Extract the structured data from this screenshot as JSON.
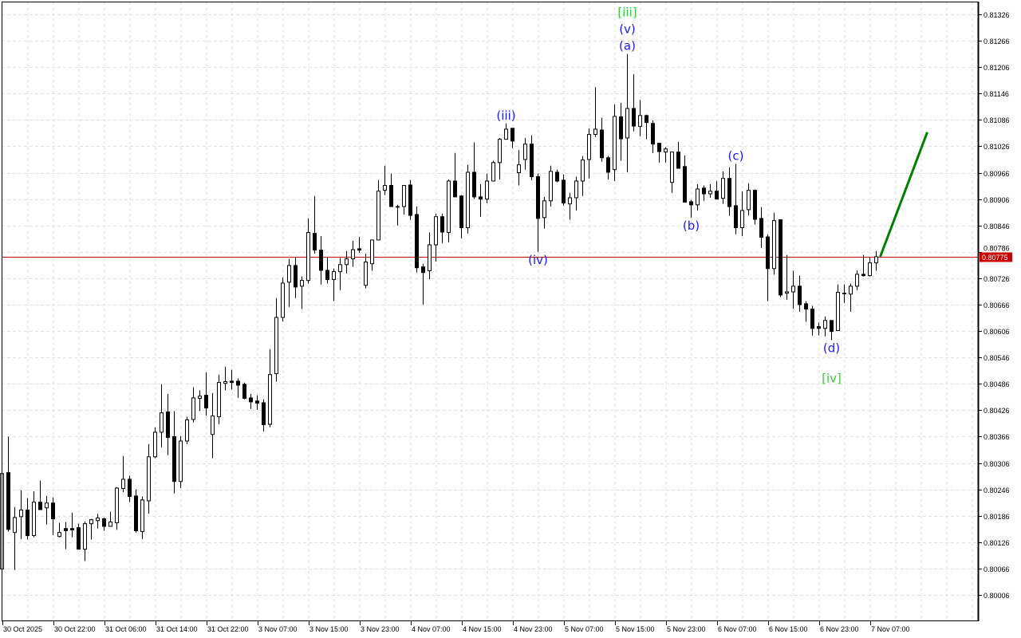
{
  "chart_data": {
    "type": "candlestick",
    "title": "",
    "xlabel": "",
    "ylabel": "",
    "ylim": [
      0.79948,
      0.81355
    ],
    "grid": true,
    "colors": {
      "bull_fill": "#ffffff",
      "bear_fill": "#000000",
      "candle_outline": "#000000",
      "grid": "#e0e0e0",
      "price_line": "#d00000",
      "projection": "#008000",
      "wave_minor": "#1a1aff",
      "wave_major": "#3cc83c"
    },
    "y_ticks": [
      "0.81326",
      "0.81266",
      "0.81206",
      "0.81146",
      "0.81086",
      "0.81026",
      "0.80966",
      "0.80906",
      "0.80846",
      "0.80786",
      "0.80726",
      "0.80666",
      "0.80606",
      "0.80546",
      "0.80486",
      "0.80426",
      "0.80366",
      "0.80306",
      "0.80246",
      "0.80186",
      "0.80126",
      "0.80066",
      "0.80006"
    ],
    "x_ticks": [
      {
        "bar": 0,
        "label": "30 Oct 2025"
      },
      {
        "bar": 8,
        "label": "30 Oct 22:00"
      },
      {
        "bar": 16,
        "label": "31 Oct 06:00"
      },
      {
        "bar": 24,
        "label": "31 Oct 14:00"
      },
      {
        "bar": 32,
        "label": "31 Oct 22:00"
      },
      {
        "bar": 40,
        "label": "3 Nov 07:00"
      },
      {
        "bar": 48,
        "label": "3 Nov 15:00"
      },
      {
        "bar": 56,
        "label": "3 Nov 23:00"
      },
      {
        "bar": 64,
        "label": "4 Nov 07:00"
      },
      {
        "bar": 72,
        "label": "4 Nov 15:00"
      },
      {
        "bar": 80,
        "label": "4 Nov 23:00"
      },
      {
        "bar": 88,
        "label": "5 Nov 07:00"
      },
      {
        "bar": 96,
        "label": "5 Nov 15:00"
      },
      {
        "bar": 104,
        "label": "5 Nov 23:00"
      },
      {
        "bar": 112,
        "label": "6 Nov 07:00"
      },
      {
        "bar": 120,
        "label": "6 Nov 15:00"
      },
      {
        "bar": 128,
        "label": "6 Nov 23:00"
      },
      {
        "bar": 136,
        "label": "7 Nov 07:00"
      }
    ],
    "current_price": "0.80775",
    "ohlc": [
      [
        0.80065,
        0.80366,
        0.80065,
        0.80282
      ],
      [
        0.80284,
        0.80366,
        0.8015,
        0.80155
      ],
      [
        0.80148,
        0.80206,
        0.80063,
        0.80182
      ],
      [
        0.80184,
        0.80244,
        0.80133,
        0.80199
      ],
      [
        0.80199,
        0.80226,
        0.80132,
        0.80141
      ],
      [
        0.80141,
        0.80242,
        0.80137,
        0.80217
      ],
      [
        0.80217,
        0.80266,
        0.802,
        0.802
      ],
      [
        0.80204,
        0.80231,
        0.80166,
        0.80215
      ],
      [
        0.80215,
        0.80228,
        0.80142,
        0.80179
      ],
      [
        0.80139,
        0.8017,
        0.80137,
        0.80148
      ],
      [
        0.80157,
        0.80172,
        0.8011,
        0.80152
      ],
      [
        0.80157,
        0.80193,
        0.80137,
        0.80154
      ],
      [
        0.80159,
        0.80168,
        0.8011,
        0.8011
      ],
      [
        0.8011,
        0.80173,
        0.80083,
        0.80168
      ],
      [
        0.80168,
        0.80179,
        0.80132,
        0.80177
      ],
      [
        0.80175,
        0.8019,
        0.80157,
        0.80181
      ],
      [
        0.80179,
        0.80182,
        0.80152,
        0.80162
      ],
      [
        0.80162,
        0.80195,
        0.80161,
        0.80172
      ],
      [
        0.8017,
        0.80251,
        0.80154,
        0.80249
      ],
      [
        0.80248,
        0.80322,
        0.8024,
        0.80269
      ],
      [
        0.80269,
        0.80277,
        0.80217,
        0.8023
      ],
      [
        0.80231,
        0.80246,
        0.80148,
        0.80152
      ],
      [
        0.8015,
        0.8023,
        0.80133,
        0.80222
      ],
      [
        0.8022,
        0.80349,
        0.80191,
        0.8032
      ],
      [
        0.8032,
        0.80387,
        0.80317,
        0.80376
      ],
      [
        0.80376,
        0.80485,
        0.80342,
        0.8042
      ],
      [
        0.80422,
        0.80463,
        0.80324,
        0.80364
      ],
      [
        0.80366,
        0.80424,
        0.80237,
        0.80264
      ],
      [
        0.80264,
        0.80367,
        0.80249,
        0.80356
      ],
      [
        0.80356,
        0.80411,
        0.80349,
        0.80404
      ],
      [
        0.80405,
        0.80478,
        0.80398,
        0.80454
      ],
      [
        0.80453,
        0.80471,
        0.80424,
        0.80458
      ],
      [
        0.8046,
        0.80512,
        0.80414,
        0.80431
      ],
      [
        0.80371,
        0.80465,
        0.80317,
        0.80413
      ],
      [
        0.80411,
        0.80507,
        0.80394,
        0.80489
      ],
      [
        0.80487,
        0.80525,
        0.80471,
        0.80491
      ],
      [
        0.80492,
        0.80518,
        0.80473,
        0.80489
      ],
      [
        0.80492,
        0.80498,
        0.80454,
        0.80483
      ],
      [
        0.80485,
        0.80489,
        0.80451,
        0.80453
      ],
      [
        0.80454,
        0.80463,
        0.80429,
        0.80445
      ],
      [
        0.80447,
        0.8046,
        0.80427,
        0.80442
      ],
      [
        0.80443,
        0.80451,
        0.80378,
        0.80393
      ],
      [
        0.80394,
        0.80565,
        0.80387,
        0.80507
      ],
      [
        0.80509,
        0.80681,
        0.80491,
        0.80637
      ],
      [
        0.80637,
        0.80728,
        0.80628,
        0.80715
      ],
      [
        0.80717,
        0.8077,
        0.80661,
        0.80755
      ],
      [
        0.80755,
        0.80775,
        0.80681,
        0.80706
      ],
      [
        0.80708,
        0.8073,
        0.80656,
        0.80721
      ],
      [
        0.80721,
        0.80862,
        0.80714,
        0.8083
      ],
      [
        0.80828,
        0.80913,
        0.80782,
        0.8079
      ],
      [
        0.8079,
        0.80822,
        0.80712,
        0.80744
      ],
      [
        0.80744,
        0.80775,
        0.80714,
        0.80723
      ],
      [
        0.80723,
        0.80748,
        0.80674,
        0.80741
      ],
      [
        0.80741,
        0.80772,
        0.80699,
        0.80757
      ],
      [
        0.80757,
        0.80788,
        0.80737,
        0.8077
      ],
      [
        0.8077,
        0.80811,
        0.80752,
        0.80791
      ],
      [
        0.80793,
        0.8082,
        0.80784,
        0.8079
      ],
      [
        0.8071,
        0.80782,
        0.80703,
        0.80763
      ],
      [
        0.80759,
        0.80813,
        0.80743,
        0.80813
      ],
      [
        0.80813,
        0.80949,
        0.80813,
        0.80924
      ],
      [
        0.80926,
        0.80982,
        0.80915,
        0.80937
      ],
      [
        0.80937,
        0.80964,
        0.80889,
        0.80889
      ],
      [
        0.80889,
        0.80893,
        0.80846,
        0.80889
      ],
      [
        0.80889,
        0.80938,
        0.80871,
        0.80937
      ],
      [
        0.80938,
        0.80949,
        0.80859,
        0.80869
      ],
      [
        0.80871,
        0.80889,
        0.80739,
        0.8075
      ],
      [
        0.80752,
        0.80759,
        0.80666,
        0.80739
      ],
      [
        0.80743,
        0.8083,
        0.80724,
        0.80802
      ],
      [
        0.80802,
        0.80873,
        0.80764,
        0.80866
      ],
      [
        0.80866,
        0.80873,
        0.80806,
        0.80831
      ],
      [
        0.8083,
        0.80951,
        0.80808,
        0.80947
      ],
      [
        0.80947,
        0.81011,
        0.80911,
        0.80911
      ],
      [
        0.80913,
        0.80915,
        0.80817,
        0.80841
      ],
      [
        0.80841,
        0.80984,
        0.80828,
        0.80967
      ],
      [
        0.80967,
        0.81035,
        0.80906,
        0.80911
      ],
      [
        0.80911,
        0.8094,
        0.80866,
        0.80906
      ],
      [
        0.80906,
        0.80964,
        0.80897,
        0.80947
      ],
      [
        0.80947,
        0.80993,
        0.80946,
        0.80989
      ],
      [
        0.80989,
        0.81045,
        0.80951,
        0.81042
      ],
      [
        0.81042,
        0.81078,
        0.81042,
        0.81065
      ],
      [
        0.81067,
        0.81067,
        0.81022,
        0.81038
      ],
      [
        0.80966,
        0.81018,
        0.80937,
        0.80984
      ],
      [
        0.80996,
        0.81045,
        0.80973,
        0.81031
      ],
      [
        0.81031,
        0.81051,
        0.80949,
        0.80957
      ],
      [
        0.80957,
        0.80964,
        0.80786,
        0.80862
      ],
      [
        0.80864,
        0.80911,
        0.80839,
        0.80902
      ],
      [
        0.80902,
        0.80982,
        0.80889,
        0.80969
      ],
      [
        0.80967,
        0.80973,
        0.80944,
        0.80947
      ],
      [
        0.80949,
        0.80962,
        0.80891,
        0.80897
      ],
      [
        0.80895,
        0.8092,
        0.80859,
        0.80909
      ],
      [
        0.80909,
        0.80957,
        0.8088,
        0.80947
      ],
      [
        0.80947,
        0.81004,
        0.80913,
        0.80995
      ],
      [
        0.80996,
        0.81067,
        0.80953,
        0.81053
      ],
      [
        0.81053,
        0.8116,
        0.81047,
        0.81065
      ],
      [
        0.81063,
        0.81091,
        0.80991,
        0.81
      ],
      [
        0.81,
        0.81004,
        0.80951,
        0.80967
      ],
      [
        0.80973,
        0.81121,
        0.80947,
        0.81094
      ],
      [
        0.81093,
        0.81125,
        0.80993,
        0.81043
      ],
      [
        0.81045,
        0.81236,
        0.80967,
        0.81112
      ],
      [
        0.81112,
        0.8119,
        0.8106,
        0.81072
      ],
      [
        0.81071,
        0.81131,
        0.81049,
        0.81096
      ],
      [
        0.81096,
        0.81098,
        0.81042,
        0.8108
      ],
      [
        0.81078,
        0.81085,
        0.81011,
        0.81031
      ],
      [
        0.81033,
        0.81033,
        0.80989,
        0.81014
      ],
      [
        0.81013,
        0.81024,
        0.80989,
        0.8102
      ],
      [
        0.80944,
        0.81013,
        0.8092,
        0.81013
      ],
      [
        0.81013,
        0.81036,
        0.80976,
        0.80976
      ],
      [
        0.8098,
        0.81005,
        0.80899,
        0.80899
      ],
      [
        0.809,
        0.80904,
        0.80864,
        0.80893
      ],
      [
        0.80893,
        0.8094,
        0.8088,
        0.80929
      ],
      [
        0.80931,
        0.80937,
        0.80902,
        0.80918
      ],
      [
        0.80918,
        0.8094,
        0.80909,
        0.80924
      ],
      [
        0.80924,
        0.80947,
        0.80906,
        0.80906
      ],
      [
        0.80908,
        0.80969,
        0.80895,
        0.80953
      ],
      [
        0.80953,
        0.80978,
        0.80868,
        0.80889
      ],
      [
        0.80891,
        0.80986,
        0.80826,
        0.80841
      ],
      [
        0.80841,
        0.80924,
        0.80822,
        0.8088
      ],
      [
        0.80882,
        0.80942,
        0.80869,
        0.80926
      ],
      [
        0.80926,
        0.80928,
        0.80848,
        0.8086
      ],
      [
        0.80862,
        0.80888,
        0.80795,
        0.80819
      ],
      [
        0.8082,
        0.80826,
        0.80674,
        0.80748
      ],
      [
        0.80748,
        0.80875,
        0.80734,
        0.80857
      ],
      [
        0.80859,
        0.80859,
        0.80683,
        0.80688
      ],
      [
        0.80692,
        0.80779,
        0.80677,
        0.80695
      ],
      [
        0.80695,
        0.80743,
        0.80657,
        0.80708
      ],
      [
        0.80708,
        0.80732,
        0.8065,
        0.80666
      ],
      [
        0.80668,
        0.80674,
        0.80627,
        0.80656
      ],
      [
        0.80656,
        0.80663,
        0.80596,
        0.80612
      ],
      [
        0.80616,
        0.80625,
        0.80596,
        0.80612
      ],
      [
        0.80612,
        0.80639,
        0.80594,
        0.8063
      ],
      [
        0.8063,
        0.8063,
        0.80585,
        0.80605
      ],
      [
        0.80607,
        0.80712,
        0.80607,
        0.80694
      ],
      [
        0.80692,
        0.80712,
        0.8067,
        0.80692
      ],
      [
        0.8069,
        0.80714,
        0.8065,
        0.80708
      ],
      [
        0.80708,
        0.80744,
        0.80699,
        0.80735
      ],
      [
        0.80735,
        0.80779,
        0.8073,
        0.80732
      ],
      [
        0.80732,
        0.80773,
        0.8073,
        0.80761
      ],
      [
        0.80761,
        0.80788,
        0.80743,
        0.80775
      ]
    ],
    "projection": {
      "from": {
        "bar": 138,
        "price": 0.80775
      },
      "to": {
        "bar": 145,
        "price": 0.81058
      }
    },
    "annotations": [
      {
        "bar": 98,
        "label": "[iii]",
        "level": "major",
        "side": "above",
        "stack": 2
      },
      {
        "bar": 98,
        "label": "(v)",
        "level": "minor",
        "side": "above",
        "stack": 1
      },
      {
        "bar": 98,
        "label": "(a)",
        "level": "minor",
        "side": "above",
        "stack": 0
      },
      {
        "bar": 79,
        "label": "(iii)",
        "level": "minor",
        "side": "above",
        "stack": 0
      },
      {
        "bar": 84,
        "label": "(iv)",
        "level": "minor",
        "side": "below",
        "stack": 0
      },
      {
        "bar": 108,
        "label": "(b)",
        "level": "minor",
        "side": "below",
        "stack": 0
      },
      {
        "bar": 115,
        "label": "(c)",
        "level": "minor",
        "side": "above",
        "stack": 0
      },
      {
        "bar": 130,
        "label": "(d)",
        "level": "minor",
        "side": "below",
        "stack": 0
      },
      {
        "bar": 130,
        "label": "[iv]",
        "level": "major",
        "side": "below",
        "stack": 1
      }
    ]
  }
}
